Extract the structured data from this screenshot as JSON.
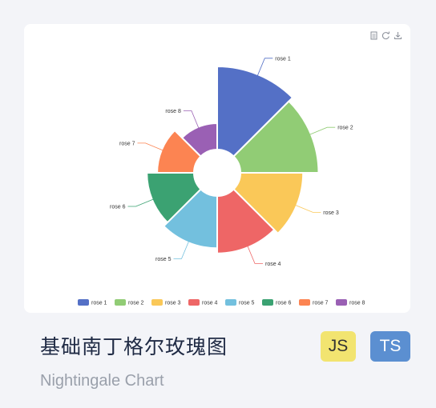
{
  "card": {
    "title": "基础南丁格尔玫瑰图",
    "subtitle": "Nightingale Chart",
    "badges": [
      {
        "label": "JS",
        "bg": "#f2e470",
        "fg": "#333333"
      },
      {
        "label": "TS",
        "bg": "#5b8fd1",
        "fg": "#ffffff"
      }
    ]
  },
  "toolbox": [
    {
      "icon": "data-view-icon"
    },
    {
      "icon": "restore-icon"
    },
    {
      "icon": "save-as-image-icon"
    }
  ],
  "chart_data": {
    "type": "pie",
    "variant": "nightingale-rose",
    "categories": [
      "rose 1",
      "rose 2",
      "rose 3",
      "rose 4",
      "rose 5",
      "rose 6",
      "rose 7",
      "rose 8"
    ],
    "values": [
      40,
      38,
      32,
      30,
      28,
      26,
      22,
      18
    ],
    "colors": [
      "#5470c6",
      "#91cc75",
      "#fac858",
      "#ee6666",
      "#73c0de",
      "#3ba272",
      "#fc8452",
      "#9a60b4"
    ],
    "legend_position": "bottom"
  }
}
